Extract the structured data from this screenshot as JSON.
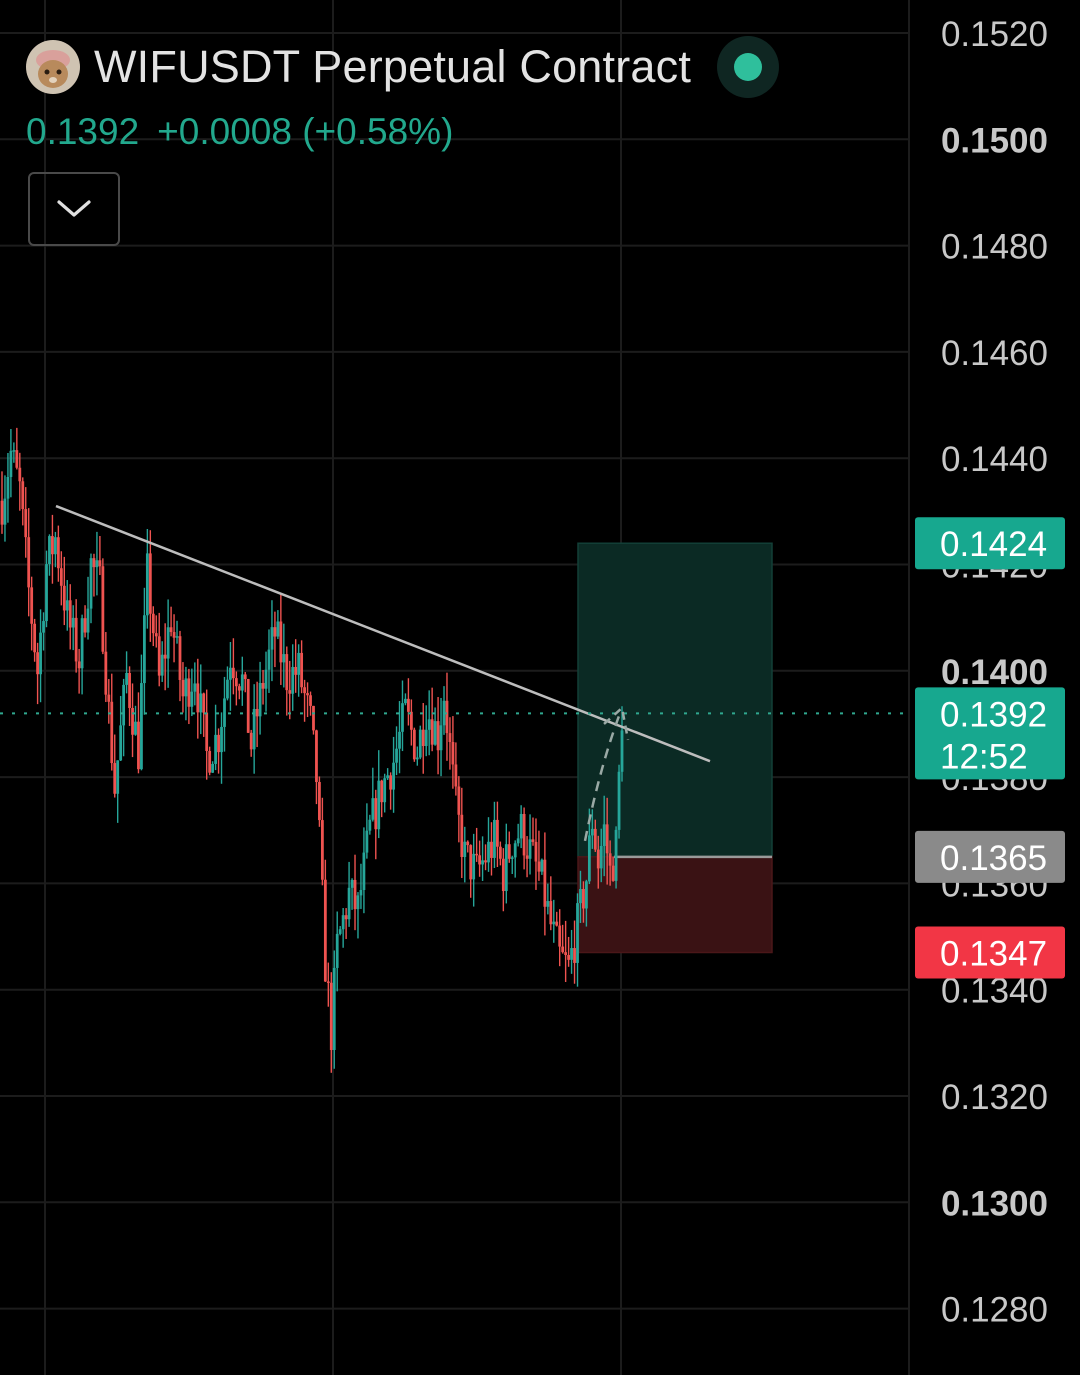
{
  "header": {
    "symbol_title": "WIFUSDT Perpetual Contract",
    "last_price": "0.1392",
    "change": "+0.0008 (+0.58%)",
    "status_color": "#2fbf9c"
  },
  "colors": {
    "up": "#26a69a",
    "down": "#ef5350",
    "text": "#c8c8c8",
    "grid": "#1c1c1c",
    "tp_zone": "#0b2a24",
    "sl_zone": "#3a1214"
  },
  "price_scale": {
    "labels": [
      "0.1520",
      "0.1500",
      "0.1480",
      "0.1460",
      "0.1440",
      "0.1420",
      "0.1400",
      "0.1380",
      "0.1360",
      "0.1340",
      "0.1320",
      "0.1300",
      "0.1280"
    ],
    "bold_labels": [
      "0.1500",
      "0.1400",
      "0.1300"
    ],
    "tags": {
      "take_profit": {
        "value": "0.1424",
        "color": "#17a88f"
      },
      "current": {
        "value": "0.1392",
        "countdown": "12:52",
        "color": "#17a88f"
      },
      "entry": {
        "value": "0.1365",
        "color": "#8a8a8a"
      },
      "stop_loss": {
        "value": "0.1347",
        "color": "#f23645"
      }
    }
  },
  "chart_data": {
    "type": "candlestick",
    "ylim": [
      0.127,
      0.1528
    ],
    "y_ticks": [
      0.152,
      0.15,
      0.148,
      0.146,
      0.144,
      0.142,
      0.14,
      0.138,
      0.136,
      0.134,
      0.132,
      0.13,
      0.128
    ],
    "grid": true,
    "current_price": 0.1392,
    "position": {
      "take_profit": 0.1424,
      "entry": 0.1365,
      "stop_loss": 0.1347
    },
    "trendline": {
      "start": 0.1431,
      "end": 0.1383
    },
    "candle_count": 210,
    "path_low_high_anchors": [
      [
        0,
        0.1432
      ],
      [
        3,
        0.1441
      ],
      [
        6,
        0.1434
      ],
      [
        9,
        0.1415
      ],
      [
        12,
        0.14
      ],
      [
        15,
        0.142
      ],
      [
        18,
        0.1425
      ],
      [
        22,
        0.141
      ],
      [
        26,
        0.1402
      ],
      [
        30,
        0.142
      ],
      [
        33,
        0.1416
      ],
      [
        36,
        0.1392
      ],
      [
        38,
        0.1378
      ],
      [
        42,
        0.1399
      ],
      [
        46,
        0.1385
      ],
      [
        49,
        0.1418
      ],
      [
        53,
        0.1398
      ],
      [
        57,
        0.141
      ],
      [
        61,
        0.1395
      ],
      [
        65,
        0.14
      ],
      [
        69,
        0.1384
      ],
      [
        73,
        0.1388
      ],
      [
        77,
        0.1403
      ],
      [
        81,
        0.1398
      ],
      [
        84,
        0.1386
      ],
      [
        88,
        0.1398
      ],
      [
        92,
        0.1407
      ],
      [
        96,
        0.1399
      ],
      [
        100,
        0.14
      ],
      [
        104,
        0.139
      ],
      [
        106,
        0.138
      ],
      [
        109,
        0.1345
      ],
      [
        111,
        0.1332
      ],
      [
        113,
        0.1348
      ],
      [
        117,
        0.1358
      ],
      [
        120,
        0.1355
      ],
      [
        124,
        0.137
      ],
      [
        128,
        0.1378
      ],
      [
        132,
        0.1383
      ],
      [
        136,
        0.1392
      ],
      [
        140,
        0.1385
      ],
      [
        143,
        0.1393
      ],
      [
        147,
        0.1388
      ],
      [
        149,
        0.1396
      ],
      [
        151,
        0.1385
      ],
      [
        153,
        0.1374
      ],
      [
        156,
        0.1365
      ],
      [
        160,
        0.1362
      ],
      [
        163,
        0.1365
      ],
      [
        166,
        0.1368
      ],
      [
        169,
        0.1362
      ],
      [
        172,
        0.1368
      ],
      [
        175,
        0.137
      ],
      [
        178,
        0.1366
      ],
      [
        182,
        0.136
      ],
      [
        185,
        0.1352
      ],
      [
        188,
        0.1346
      ],
      [
        191,
        0.1344
      ],
      [
        194,
        0.1352
      ],
      [
        197,
        0.1361
      ],
      [
        199,
        0.1372
      ],
      [
        201,
        0.1364
      ],
      [
        203,
        0.137
      ],
      [
        205,
        0.1362
      ],
      [
        207,
        0.1367
      ],
      [
        209,
        0.1392
      ]
    ]
  }
}
